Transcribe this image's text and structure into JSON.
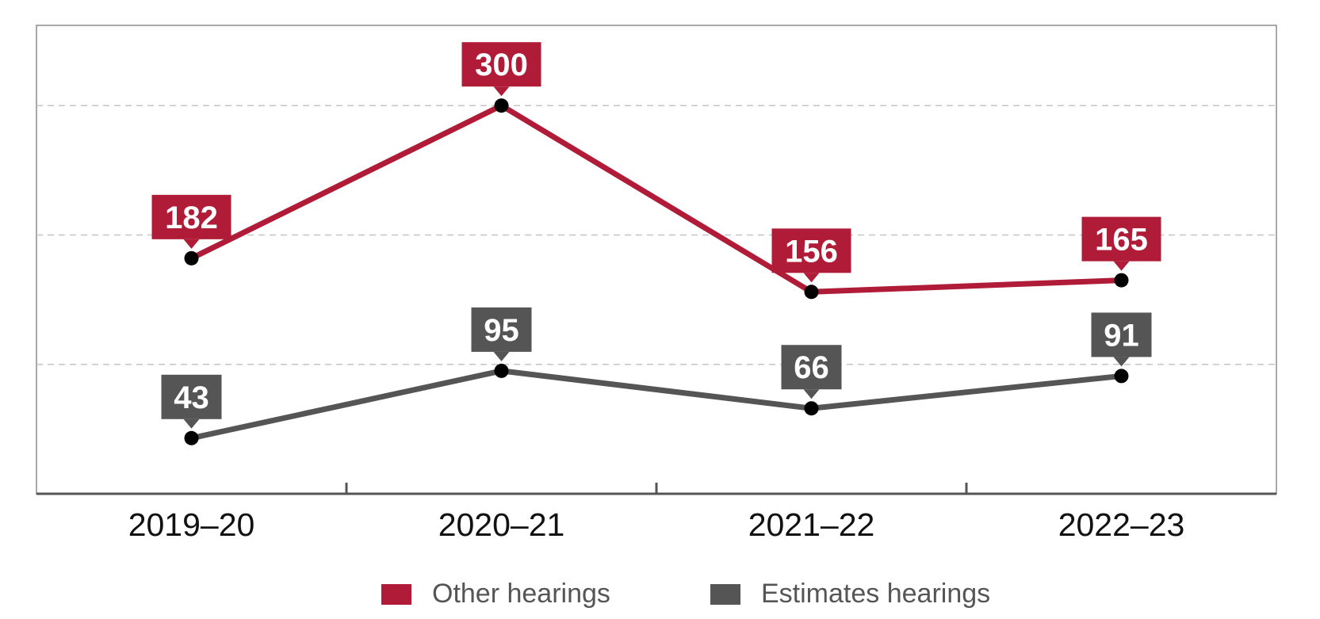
{
  "chart_data": {
    "type": "line",
    "categories": [
      "2019–20",
      "2020–21",
      "2021–22",
      "2022–23"
    ],
    "series": [
      {
        "name": "Other hearings",
        "values": [
          182,
          300,
          156,
          165
        ],
        "color": "#b01c37"
      },
      {
        "name": "Estimates hearings",
        "values": [
          43,
          95,
          66,
          91
        ],
        "color": "#555555"
      }
    ],
    "ylim": [
      0,
      400
    ],
    "grid": true,
    "legend": "bottom",
    "title": "",
    "xlabel": "",
    "ylabel": ""
  },
  "legend": {
    "other_label": "Other hearings",
    "estimates_label": "Estimates hearings"
  }
}
